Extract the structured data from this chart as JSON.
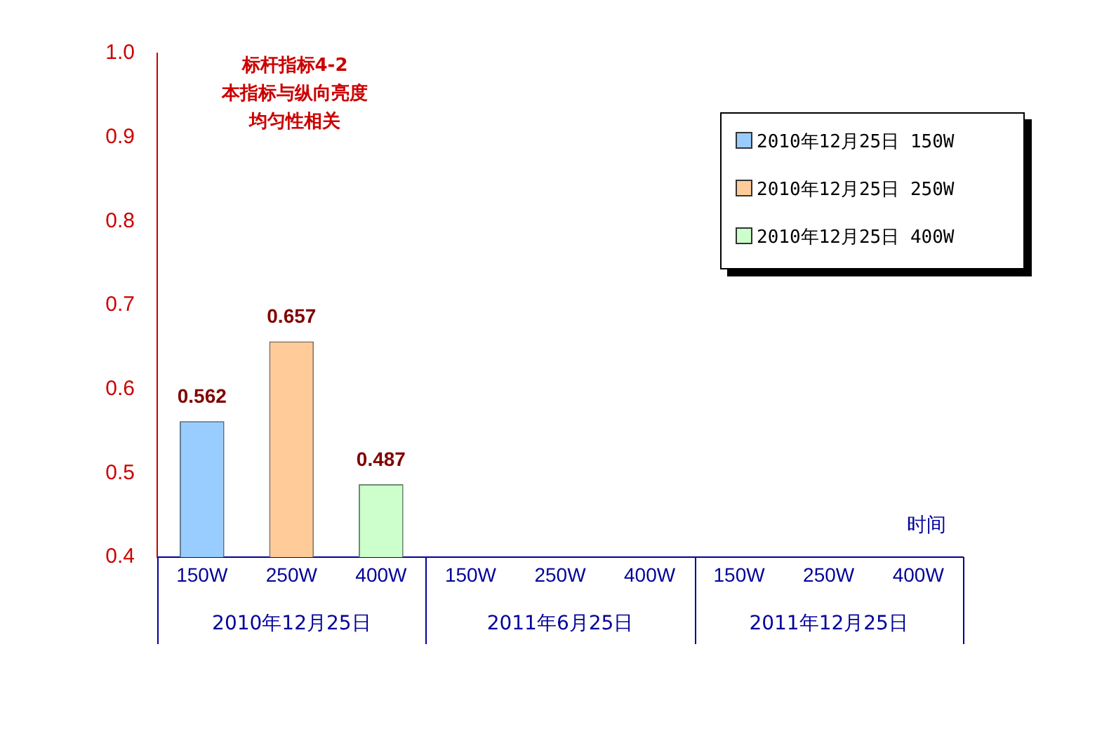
{
  "chart_data": {
    "type": "bar",
    "title": "标杆指标4-2",
    "subtitle": "本指标与纵向亮度均匀性相关",
    "xlabel": "时间",
    "categories": [
      "150W",
      "250W",
      "400W",
      "150W",
      "250W",
      "400W",
      "150W",
      "250W",
      "400W"
    ],
    "annotations": [
      "2010年12月25日",
      "2011年6月25日",
      "2011年12月25日"
    ],
    "series": [
      {
        "name": "2010年12月25日  150W",
        "color": "#99ccff",
        "values": [
          0.562,
          null,
          null,
          null,
          null,
          null,
          null,
          null,
          null
        ]
      },
      {
        "name": "2010年12月25日  250W",
        "color": "#ffcc99",
        "values": [
          null,
          0.657,
          null,
          null,
          null,
          null,
          null,
          null,
          null
        ]
      },
      {
        "name": "2010年12月25日  400W",
        "color": "#ccffcc",
        "values": [
          null,
          null,
          0.487,
          null,
          null,
          null,
          null,
          null,
          null
        ]
      }
    ],
    "ylim": [
      0.4,
      1.0
    ],
    "yticks": [
      0.4,
      0.5,
      0.6,
      0.7,
      0.8,
      0.9,
      {
        "value": 1,
        "label": "1.0"
      }
    ],
    "grid": false,
    "legend": "top right",
    "data_labels": true
  }
}
